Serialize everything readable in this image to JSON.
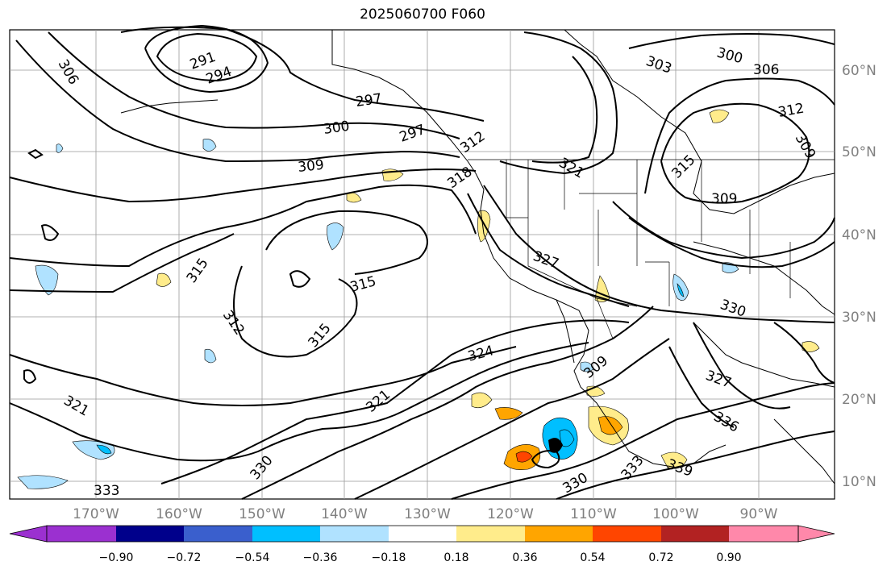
{
  "title": "2025060700 F060",
  "longitude_labels": [
    "170°W",
    "160°W",
    "150°W",
    "140°W",
    "130°W",
    "120°W",
    "110°W",
    "100°W",
    "90°W"
  ],
  "latitude_labels": [
    "60°N",
    "50°N",
    "40°N",
    "30°N",
    "20°N",
    "10°N"
  ],
  "contour_labels": [
    "291",
    "294",
    "297",
    "300",
    "303",
    "306",
    "306",
    "309",
    "309",
    "309",
    "312",
    "312",
    "312",
    "315",
    "315",
    "315",
    "315",
    "318",
    "321",
    "321",
    "321",
    "324",
    "327",
    "327",
    "330",
    "330",
    "330",
    "333",
    "333",
    "336",
    "339",
    "300",
    "297",
    "309"
  ],
  "colorbar": {
    "tick_labels": [
      "−0.90",
      "−0.72",
      "−0.54",
      "−0.36",
      "−0.18",
      "0.18",
      "0.36",
      "0.54",
      "0.72",
      "0.90"
    ],
    "colors": [
      "#9b30d0",
      "#00008b",
      "#3a5fcd",
      "#00bfff",
      "#b0e2ff",
      "#ffffff",
      "#ffec8b",
      "#ffa500",
      "#ff4500",
      "#b22222",
      "#ff88aa"
    ]
  },
  "shading_colors": {
    "neg_light": "#b0e2ff",
    "neg": "#00bfff",
    "pos_light": "#ffec8b",
    "pos": "#ffa500",
    "pos_strong": "#ff4500"
  }
}
